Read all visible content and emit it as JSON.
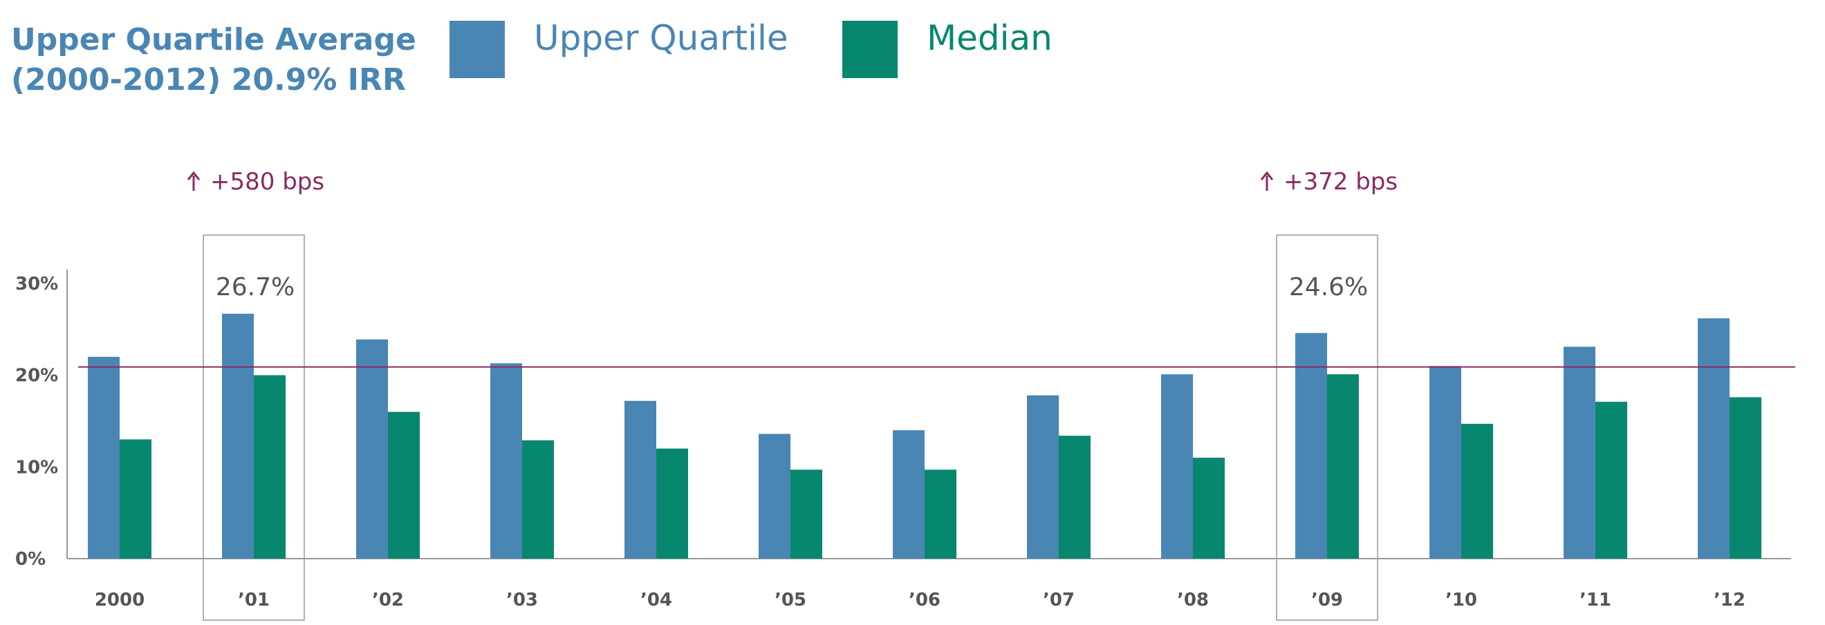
{
  "colors": {
    "upper_quartile": "#4a86b4",
    "median": "#08876f",
    "title": "#4a86b4",
    "avg_line": "#8b2a5f",
    "callout": "#8b2a5f",
    "axis": "#999999",
    "label": "#555555",
    "highlight_box": "#999999"
  },
  "chart_data": {
    "type": "bar",
    "title_lines": [
      "Upper Quartile Average",
      "(2000-2012) 20.9% IRR"
    ],
    "categories": [
      "2000",
      "’01",
      "’02",
      "’03",
      "’04",
      "’05",
      "’06",
      "’07",
      "’08",
      "’09",
      "’10",
      "’11",
      "’12"
    ],
    "series": [
      {
        "name": "Upper Quartile",
        "values": [
          22.0,
          26.7,
          23.9,
          21.3,
          17.2,
          13.6,
          14.0,
          17.8,
          20.1,
          24.6,
          21.0,
          23.1,
          26.2
        ]
      },
      {
        "name": "Median",
        "values": [
          13.0,
          20.0,
          16.0,
          12.9,
          12.0,
          9.7,
          9.7,
          13.4,
          11.0,
          20.1,
          14.7,
          17.1,
          17.6
        ]
      }
    ],
    "yticks": [
      "0%",
      "10%",
      "20%",
      "30%"
    ],
    "ylim": [
      0,
      30
    ],
    "average_line": 20.9,
    "highlights": [
      {
        "category_index": 1,
        "label": "26.7%",
        "callout": "+580 bps"
      },
      {
        "category_index": 9,
        "label": "24.6%",
        "callout": "+372 bps"
      }
    ],
    "legend_position": "top",
    "grid": false,
    "xlabel": "",
    "ylabel": ""
  }
}
